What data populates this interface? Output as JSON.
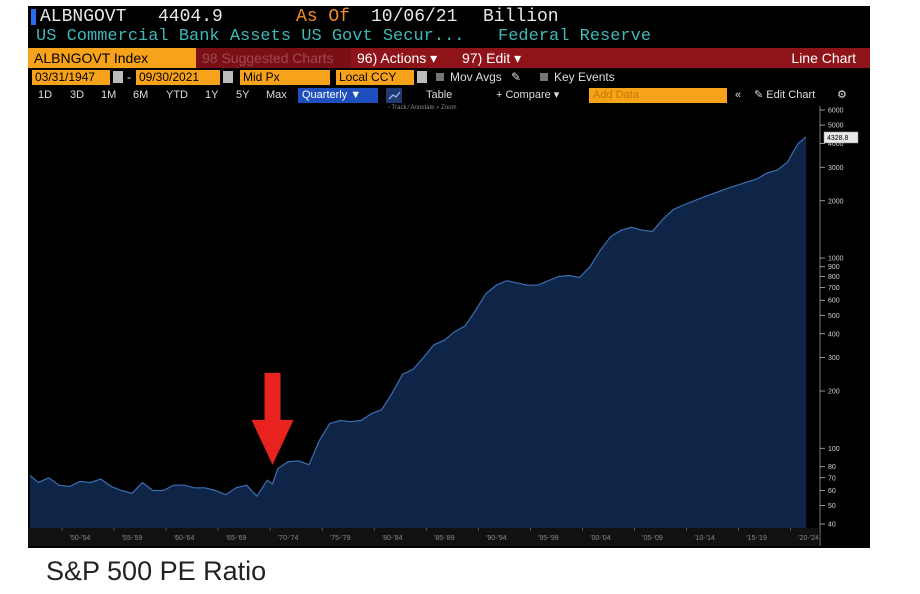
{
  "header": {
    "ticker": "ALBNGOVT",
    "price": "4404.9",
    "as_of_label": "As Of",
    "as_of_date": "10/06/21",
    "unit": "Billion",
    "description": "US Commercial Bank Assets US Govt Secur...",
    "source": "Federal Reserve"
  },
  "toolbar": {
    "security": "ALBNGOVT Index",
    "suggested": "98 Suggested Charts",
    "actions": "96) Actions ▾",
    "edit": "97) Edit ▾",
    "chart_type": "Line Chart"
  },
  "controls": {
    "start_date": "03/31/1947",
    "end_date": "09/30/2021",
    "price_field": "Mid Px",
    "currency": "Local CCY",
    "mov_avgs": "Mov Avgs",
    "key_events": "Key Events"
  },
  "ranges": {
    "buttons": [
      "1D",
      "3D",
      "1M",
      "6M",
      "YTD",
      "1Y",
      "5Y",
      "Max"
    ],
    "period": "Quarterly ▼",
    "table": "Table",
    "compare": "+ Compare ▾",
    "add_data_placeholder": "Add Data",
    "collapse": "«",
    "edit_chart": "✎ Edit Chart",
    "gear": "⚙"
  },
  "subtools": "▫ Track   ⁄ Annotate   ⌕ Zoom",
  "caption": "S&P 500 PE Ratio",
  "colors": {
    "area_fill": "#0f2547",
    "area_line": "#3a6fb0",
    "arrow": "#e8231f",
    "accent_orange": "#f7a21b",
    "toolbar_red": "#8f1419"
  },
  "chart_data": {
    "type": "area",
    "title": "",
    "xlabel": "",
    "ylabel": "",
    "y_scale": "log",
    "ylim": [
      40,
      6000
    ],
    "grid": false,
    "last_value_label": "4328.8",
    "x_tick_labels": [
      "'50-'54",
      "'55-'59",
      "'60-'64",
      "'65-'69",
      "'70-'74",
      "'75-'79",
      "'80-'84",
      "'85-'89",
      "'90-'94",
      "'95-'99",
      "'00-'04",
      "'05-'09",
      "'10-'14",
      "'15-'19",
      "'20-'24"
    ],
    "x_tick_years": [
      1952,
      1957,
      1962,
      1967,
      1972,
      1977,
      1982,
      1987,
      1992,
      1997,
      2002,
      2007,
      2012,
      2017,
      2022
    ],
    "y_ticks": [
      6000,
      5000,
      4000,
      3000,
      2000,
      1000,
      900,
      800,
      700,
      600,
      500,
      400,
      300,
      200,
      100,
      80,
      70,
      60,
      50,
      40
    ],
    "annotation": "red downward arrow pointing near 1970",
    "annotation_x": 1970.5,
    "annotation_y": 78,
    "series": [
      {
        "x": [
          1947.2,
          1948,
          1949,
          1950,
          1951,
          1952,
          1953,
          1954,
          1955,
          1956,
          1957,
          1958,
          1959,
          1960,
          1961,
          1962,
          1963,
          1964,
          1965,
          1966,
          1967,
          1968,
          1969,
          1970,
          1970.5,
          1971,
          1972,
          1973,
          1974,
          1975,
          1976,
          1977,
          1978,
          1979,
          1980,
          1981,
          1982,
          1983,
          1984,
          1985,
          1986,
          1987,
          1988,
          1989,
          1990,
          1991,
          1992,
          1993,
          1994,
          1995,
          1996,
          1997,
          1998,
          1999,
          2000,
          2001,
          2002,
          2003,
          2004,
          2005,
          2006,
          2007,
          2008,
          2009,
          2010,
          2011,
          2012,
          2013,
          2014,
          2015,
          2016,
          2017,
          2018,
          2019,
          2020,
          2020.5,
          2021,
          2021.75
        ],
        "values": [
          72,
          66,
          70,
          64,
          63,
          67,
          66,
          69,
          63,
          60,
          58,
          66,
          60,
          60,
          64,
          64,
          62,
          62,
          60,
          57,
          62,
          64,
          56,
          68,
          65,
          78,
          85,
          86,
          82,
          110,
          135,
          140,
          138,
          140,
          152,
          160,
          195,
          245,
          260,
          300,
          350,
          370,
          410,
          440,
          530,
          650,
          720,
          760,
          740,
          720,
          720,
          760,
          800,
          810,
          790,
          900,
          1100,
          1300,
          1400,
          1450,
          1400,
          1380,
          1600,
          1800,
          1900,
          2000,
          2100,
          2200,
          2300,
          2400,
          2500,
          2600,
          2800,
          2900,
          3200,
          3600,
          4000,
          4328.8
        ]
      }
    ]
  }
}
